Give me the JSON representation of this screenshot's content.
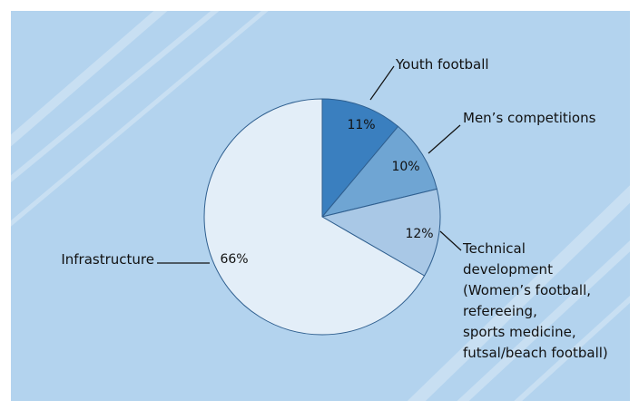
{
  "chart_data": {
    "type": "pie",
    "slices": [
      {
        "label": "Youth football",
        "value": 11,
        "display": "11%",
        "color": "#3a7fbf"
      },
      {
        "label": "Men’s competitions",
        "value": 10,
        "display": "10%",
        "color": "#6fa5d3"
      },
      {
        "label": "Technical development (Women’s football, refereeing, sports medicine, futsal/beach football)",
        "value": 12,
        "display": "12%",
        "color": "#a9c8e6"
      },
      {
        "label": "Infrastructure",
        "value": 66,
        "display": "66%",
        "color": "#e3eef8"
      }
    ],
    "label_lines": {
      "youth": [
        "Youth football"
      ],
      "mens": [
        "Men’s competitions"
      ],
      "technical": [
        "Technical",
        "development",
        "(Women’s football,",
        "refereeing,",
        "sports medicine,",
        "futsal/beach football)"
      ],
      "infra": [
        "Infrastructure"
      ]
    }
  },
  "colors": {
    "panel_background": "#b3d3ee",
    "slice_border": "#2f5f8f",
    "leader_line": "#111111"
  }
}
